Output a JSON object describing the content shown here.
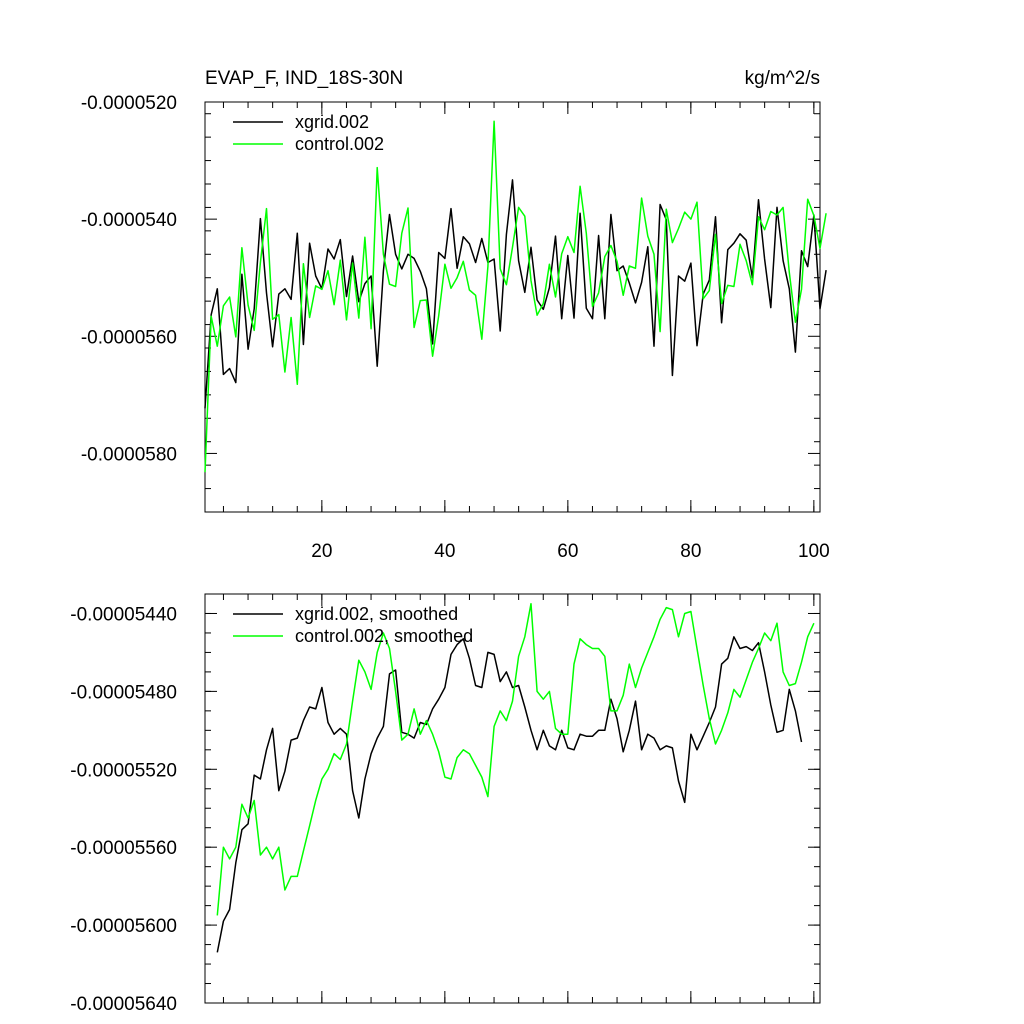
{
  "chart_data": [
    {
      "type": "line",
      "title": "EVAP_F, IND_18S-30N",
      "units": "kg/m^2/s",
      "xlim": [
        1,
        101
      ],
      "ylim": [
        -5.9e-05,
        -5.2e-05
      ],
      "x_ticks": [
        20,
        40,
        60,
        80,
        100
      ],
      "x_tick_labels": [
        "20",
        "40",
        "60",
        "80",
        "100"
      ],
      "y_ticks": [
        -5.8e-05,
        -5.6e-05,
        -5.4e-05,
        -5.2e-05
      ],
      "y_tick_labels": [
        "-0.0000580",
        "-0.0000560",
        "-0.0000540",
        "-0.0000520"
      ],
      "legend_position": "top-left",
      "series": [
        {
          "name": "xgrid.002",
          "color": "#000000",
          "x_start": 1,
          "values": [
            -5.723e-05,
            -5.563e-05,
            -5.519e-05,
            -5.665e-05,
            -5.655e-05,
            -5.679e-05,
            -5.494e-05,
            -5.622e-05,
            -5.553e-05,
            -5.399e-05,
            -5.526e-05,
            -5.618e-05,
            -5.528e-05,
            -5.519e-05,
            -5.537e-05,
            -5.424e-05,
            -5.614e-05,
            -5.441e-05,
            -5.497e-05,
            -5.519e-05,
            -5.451e-05,
            -5.468e-05,
            -5.435e-05,
            -5.532e-05,
            -5.463e-05,
            -5.541e-05,
            -5.51e-05,
            -5.497e-05,
            -5.651e-05,
            -5.488e-05,
            -5.392e-05,
            -5.46e-05,
            -5.485e-05,
            -5.46e-05,
            -5.467e-05,
            -5.489e-05,
            -5.519e-05,
            -5.613e-05,
            -5.457e-05,
            -5.467e-05,
            -5.382e-05,
            -5.484e-05,
            -5.43e-05,
            -5.442e-05,
            -5.474e-05,
            -5.433e-05,
            -5.474e-05,
            -5.468e-05,
            -5.591e-05,
            -5.426e-05,
            -5.333e-05,
            -5.471e-05,
            -5.525e-05,
            -5.448e-05,
            -5.538e-05,
            -5.554e-05,
            -5.517e-05,
            -5.429e-05,
            -5.57e-05,
            -5.462e-05,
            -5.569e-05,
            -5.39e-05,
            -5.552e-05,
            -5.57e-05,
            -5.428e-05,
            -5.57e-05,
            -5.392e-05,
            -5.488e-05,
            -5.48e-05,
            -5.509e-05,
            -5.543e-05,
            -5.508e-05,
            -5.447e-05,
            -5.617e-05,
            -5.375e-05,
            -5.401e-05,
            -5.667e-05,
            -5.497e-05,
            -5.506e-05,
            -5.475e-05,
            -5.616e-05,
            -5.528e-05,
            -5.504e-05,
            -5.396e-05,
            -5.577e-05,
            -5.452e-05,
            -5.441e-05,
            -5.425e-05,
            -5.436e-05,
            -5.5e-05,
            -5.367e-05,
            -5.468e-05,
            -5.551e-05,
            -5.38e-05,
            -5.471e-05,
            -5.519e-05,
            -5.627e-05,
            -5.454e-05,
            -5.481e-05,
            -5.393e-05,
            -5.553e-05,
            -5.487e-05
          ]
        },
        {
          "name": "control.002",
          "color": "#00ff00",
          "x_start": 1,
          "values": [
            -5.832e-05,
            -5.566e-05,
            -5.617e-05,
            -5.548e-05,
            -5.533e-05,
            -5.601e-05,
            -5.449e-05,
            -5.547e-05,
            -5.59e-05,
            -5.474e-05,
            -5.382e-05,
            -5.571e-05,
            -5.563e-05,
            -5.661e-05,
            -5.568e-05,
            -5.682e-05,
            -5.476e-05,
            -5.568e-05,
            -5.514e-05,
            -5.52e-05,
            -5.488e-05,
            -5.546e-05,
            -5.47e-05,
            -5.572e-05,
            -5.475e-05,
            -5.569e-05,
            -5.431e-05,
            -5.587e-05,
            -5.312e-05,
            -5.46e-05,
            -5.511e-05,
            -5.515e-05,
            -5.424e-05,
            -5.381e-05,
            -5.585e-05,
            -5.539e-05,
            -5.538e-05,
            -5.634e-05,
            -5.565e-05,
            -5.477e-05,
            -5.518e-05,
            -5.5e-05,
            -5.472e-05,
            -5.521e-05,
            -5.53e-05,
            -5.605e-05,
            -5.481e-05,
            -5.233e-05,
            -5.485e-05,
            -5.512e-05,
            -5.448e-05,
            -5.38e-05,
            -5.395e-05,
            -5.505e-05,
            -5.564e-05,
            -5.544e-05,
            -5.477e-05,
            -5.533e-05,
            -5.459e-05,
            -5.43e-05,
            -5.457e-05,
            -5.344e-05,
            -5.424e-05,
            -5.549e-05,
            -5.526e-05,
            -5.464e-05,
            -5.445e-05,
            -5.472e-05,
            -5.53e-05,
            -5.48e-05,
            -5.484e-05,
            -5.364e-05,
            -5.429e-05,
            -5.46e-05,
            -5.592e-05,
            -5.383e-05,
            -5.44e-05,
            -5.416e-05,
            -5.388e-05,
            -5.4e-05,
            -5.371e-05,
            -5.536e-05,
            -5.522e-05,
            -5.426e-05,
            -5.544e-05,
            -5.513e-05,
            -5.515e-05,
            -5.443e-05,
            -5.471e-05,
            -5.512e-05,
            -5.396e-05,
            -5.418e-05,
            -5.387e-05,
            -5.393e-05,
            -5.38e-05,
            -5.491e-05,
            -5.576e-05,
            -5.52e-05,
            -5.366e-05,
            -5.394e-05,
            -5.45e-05,
            -5.39e-05
          ]
        }
      ]
    },
    {
      "type": "line",
      "title": "",
      "xlim": [
        1,
        101
      ],
      "ylim": [
        -5.64e-05,
        -5.43e-05
      ],
      "x_ticks": [
        20,
        40,
        60,
        80,
        100
      ],
      "y_ticks": [
        -5.64e-05,
        -5.6e-05,
        -5.56e-05,
        -5.52e-05,
        -5.48e-05,
        -5.44e-05
      ],
      "y_tick_labels": [
        "-0.00005640",
        "-0.00005600",
        "-0.00005560",
        "-0.00005520",
        "-0.00005480",
        "-0.00005440"
      ],
      "legend_position": "top-left",
      "series": [
        {
          "name": "xgrid.002, smoothed",
          "color": "#000000",
          "x_start": 3,
          "values": [
            -5.614e-05,
            -5.598e-05,
            -5.592e-05,
            -5.568e-05,
            -5.551e-05,
            -5.548e-05,
            -5.523e-05,
            -5.525e-05,
            -5.51e-05,
            -5.499e-05,
            -5.531e-05,
            -5.521e-05,
            -5.505e-05,
            -5.504e-05,
            -5.495e-05,
            -5.488e-05,
            -5.489e-05,
            -5.478e-05,
            -5.496e-05,
            -5.502e-05,
            -5.499e-05,
            -5.502e-05,
            -5.531e-05,
            -5.545e-05,
            -5.525e-05,
            -5.512e-05,
            -5.504e-05,
            -5.498e-05,
            -5.471e-05,
            -5.469e-05,
            -5.501e-05,
            -5.502e-05,
            -5.504e-05,
            -5.496e-05,
            -5.497e-05,
            -5.489e-05,
            -5.484e-05,
            -5.478e-05,
            -5.461e-05,
            -5.456e-05,
            -5.453e-05,
            -5.463e-05,
            -5.477e-05,
            -5.478e-05,
            -5.46e-05,
            -5.461e-05,
            -5.475e-05,
            -5.47e-05,
            -5.478e-05,
            -5.477e-05,
            -5.488e-05,
            -5.5e-05,
            -5.51e-05,
            -5.5e-05,
            -5.508e-05,
            -5.51e-05,
            -5.5e-05,
            -5.509e-05,
            -5.51e-05,
            -5.502e-05,
            -5.503e-05,
            -5.503e-05,
            -5.5e-05,
            -5.5e-05,
            -5.484e-05,
            -5.494e-05,
            -5.511e-05,
            -5.5e-05,
            -5.485e-05,
            -5.51e-05,
            -5.502e-05,
            -5.504e-05,
            -5.51e-05,
            -5.508e-05,
            -5.509e-05,
            -5.526e-05,
            -5.537e-05,
            -5.502e-05,
            -5.51e-05,
            -5.503e-05,
            -5.496e-05,
            -5.488e-05,
            -5.466e-05,
            -5.463e-05,
            -5.452e-05,
            -5.458e-05,
            -5.457e-05,
            -5.459e-05,
            -5.455e-05,
            -5.47e-05,
            -5.487e-05,
            -5.501e-05,
            -5.5e-05,
            -5.479e-05,
            -5.49e-05,
            -5.506e-05
          ]
        },
        {
          "name": "control.002, smoothed",
          "color": "#00ff00",
          "x_start": 3,
          "values": [
            -5.595e-05,
            -5.56e-05,
            -5.566e-05,
            -5.56e-05,
            -5.538e-05,
            -5.545e-05,
            -5.536e-05,
            -5.564e-05,
            -5.56e-05,
            -5.566e-05,
            -5.56e-05,
            -5.582e-05,
            -5.575e-05,
            -5.575e-05,
            -5.562e-05,
            -5.549e-05,
            -5.536e-05,
            -5.525e-05,
            -5.52e-05,
            -5.512e-05,
            -5.515e-05,
            -5.507e-05,
            -5.485e-05,
            -5.464e-05,
            -5.47e-05,
            -5.479e-05,
            -5.46e-05,
            -5.45e-05,
            -5.458e-05,
            -5.48e-05,
            -5.505e-05,
            -5.502e-05,
            -5.489e-05,
            -5.502e-05,
            -5.495e-05,
            -5.502e-05,
            -5.511e-05,
            -5.524e-05,
            -5.525e-05,
            -5.514e-05,
            -5.51e-05,
            -5.512e-05,
            -5.518e-05,
            -5.524e-05,
            -5.534e-05,
            -5.498e-05,
            -5.49e-05,
            -5.495e-05,
            -5.485e-05,
            -5.462e-05,
            -5.452e-05,
            -5.435e-05,
            -5.48e-05,
            -5.484e-05,
            -5.48e-05,
            -5.499e-05,
            -5.502e-05,
            -5.502e-05,
            -5.466e-05,
            -5.453e-05,
            -5.456e-05,
            -5.458e-05,
            -5.458e-05,
            -5.462e-05,
            -5.49e-05,
            -5.49e-05,
            -5.482e-05,
            -5.466e-05,
            -5.478e-05,
            -5.468e-05,
            -5.46e-05,
            -5.452e-05,
            -5.443e-05,
            -5.437e-05,
            -5.438e-05,
            -5.452e-05,
            -5.44e-05,
            -5.439e-05,
            -5.458e-05,
            -5.477e-05,
            -5.494e-05,
            -5.507e-05,
            -5.5e-05,
            -5.491e-05,
            -5.479e-05,
            -5.483e-05,
            -5.474e-05,
            -5.465e-05,
            -5.458e-05,
            -5.45e-05,
            -5.454e-05,
            -5.445e-05,
            -5.47e-05,
            -5.477e-05,
            -5.476e-05,
            -5.465e-05,
            -5.452e-05,
            -5.445e-05
          ]
        }
      ]
    }
  ]
}
